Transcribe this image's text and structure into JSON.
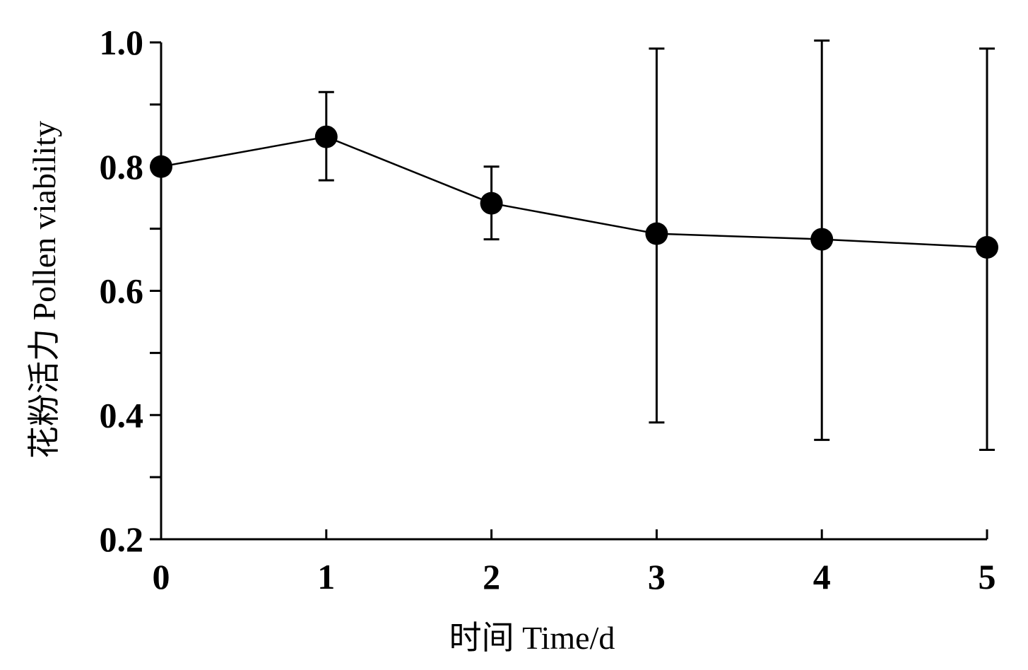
{
  "chart_data": {
    "type": "line",
    "title": "",
    "xlabel": "时间 Time/d",
    "ylabel": "花粉活力 Pollen viability",
    "x": [
      0,
      1,
      2,
      3,
      4,
      5
    ],
    "series": [
      {
        "values": [
          0.8,
          0.848,
          0.741,
          0.692,
          0.683,
          0.67
        ],
        "error_upper": [
          0.8,
          0.92,
          0.8,
          0.99,
          1.003,
          0.99
        ],
        "error_lower": [
          0.8,
          0.778,
          0.683,
          0.388,
          0.36,
          0.344
        ]
      }
    ],
    "xlim": [
      0,
      5
    ],
    "ylim": [
      0.2,
      1.0
    ],
    "xticks": [
      "0",
      "1",
      "2",
      "3",
      "4",
      "5"
    ],
    "yticks": [
      "0.2",
      "0.4",
      "0.6",
      "0.8",
      "1.0"
    ],
    "grid": false,
    "colors": {
      "line": "#000000",
      "marker": "#000000"
    }
  }
}
